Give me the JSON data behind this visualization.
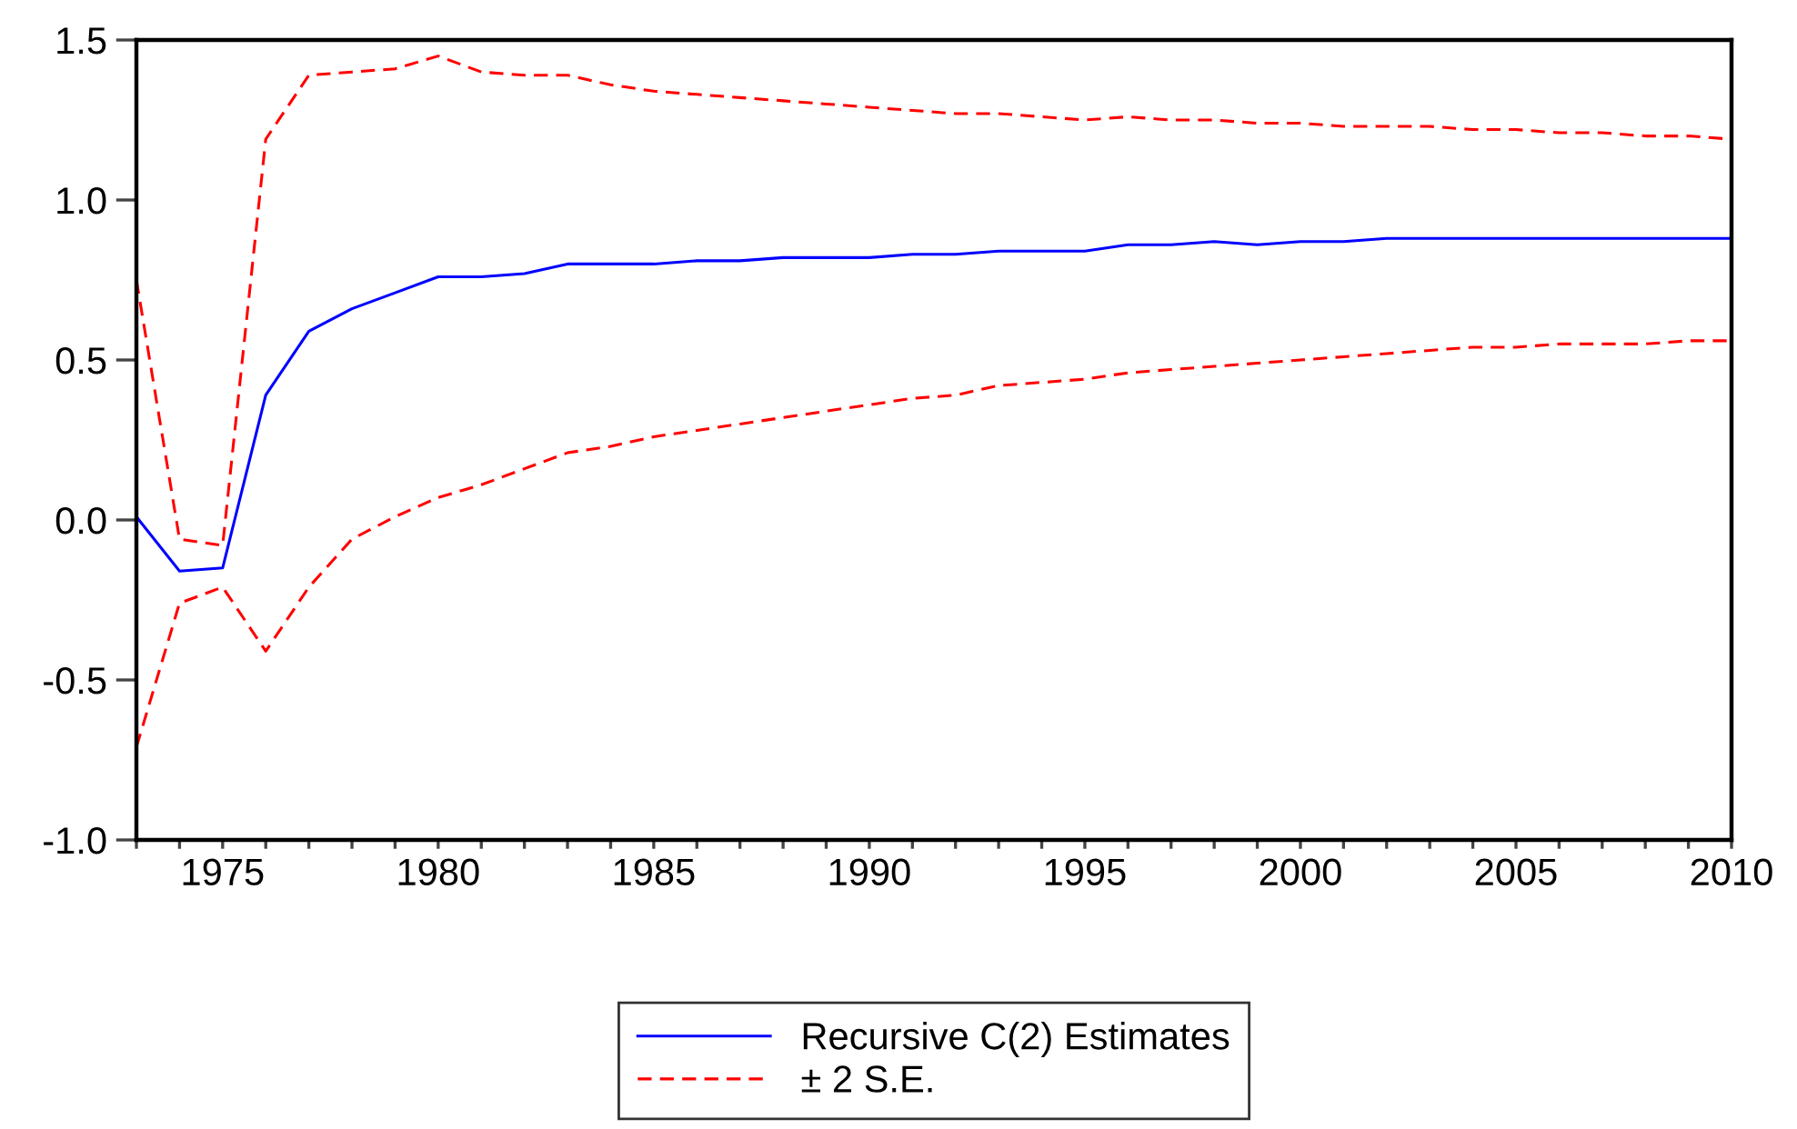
{
  "chart_data": {
    "type": "line",
    "x": [
      1973,
      1974,
      1975,
      1976,
      1977,
      1978,
      1979,
      1980,
      1981,
      1982,
      1983,
      1984,
      1985,
      1986,
      1987,
      1988,
      1989,
      1990,
      1991,
      1992,
      1993,
      1994,
      1995,
      1996,
      1997,
      1998,
      1999,
      2000,
      2001,
      2002,
      2003,
      2004,
      2005,
      2006,
      2007,
      2008,
      2009,
      2010
    ],
    "series": [
      {
        "name": "Recursive C(2) Estimates",
        "color": "#0000ff",
        "line_style": "solid",
        "values": [
          0.01,
          -0.16,
          -0.15,
          0.39,
          0.59,
          0.66,
          0.71,
          0.76,
          0.76,
          0.77,
          0.8,
          0.8,
          0.8,
          0.81,
          0.81,
          0.82,
          0.82,
          0.82,
          0.83,
          0.83,
          0.84,
          0.84,
          0.84,
          0.86,
          0.86,
          0.87,
          0.86,
          0.87,
          0.87,
          0.88,
          0.88,
          0.88,
          0.88,
          0.88,
          0.88,
          0.88,
          0.88,
          0.88
        ]
      },
      {
        "name": "± 2 S.E.",
        "color": "#ff0000",
        "line_style": "dashed",
        "values": [
          0.75,
          -0.06,
          -0.08,
          1.19,
          1.39,
          1.4,
          1.41,
          1.45,
          1.4,
          1.39,
          1.39,
          1.36,
          1.34,
          1.33,
          1.32,
          1.31,
          1.3,
          1.29,
          1.28,
          1.27,
          1.27,
          1.26,
          1.25,
          1.26,
          1.25,
          1.25,
          1.24,
          1.24,
          1.23,
          1.23,
          1.23,
          1.22,
          1.22,
          1.21,
          1.21,
          1.2,
          1.2,
          1.19
        ]
      },
      {
        "color": "#ff0000",
        "line_style": "dashed",
        "values": [
          -0.71,
          -0.26,
          -0.21,
          -0.41,
          -0.21,
          -0.06,
          0.01,
          0.07,
          0.11,
          0.16,
          0.21,
          0.23,
          0.26,
          0.28,
          0.3,
          0.32,
          0.34,
          0.36,
          0.38,
          0.39,
          0.42,
          0.43,
          0.44,
          0.46,
          0.47,
          0.48,
          0.49,
          0.5,
          0.51,
          0.52,
          0.53,
          0.54,
          0.54,
          0.55,
          0.55,
          0.55,
          0.56,
          0.56
        ]
      }
    ],
    "xlim": [
      1973,
      2010
    ],
    "xticks": [
      {
        "value": 1973,
        "label": null
      },
      {
        "value": 1974,
        "label": null
      },
      1975,
      {
        "value": 1976,
        "label": null
      },
      {
        "value": 1977,
        "label": null
      },
      {
        "value": 1978,
        "label": null
      },
      {
        "value": 1979,
        "label": null
      },
      1980,
      {
        "value": 1981,
        "label": null
      },
      {
        "value": 1982,
        "label": null
      },
      {
        "value": 1983,
        "label": null
      },
      {
        "value": 1984,
        "label": null
      },
      1985,
      {
        "value": 1986,
        "label": null
      },
      {
        "value": 1987,
        "label": null
      },
      {
        "value": 1988,
        "label": null
      },
      {
        "value": 1989,
        "label": null
      },
      1990,
      {
        "value": 1991,
        "label": null
      },
      {
        "value": 1992,
        "label": null
      },
      {
        "value": 1993,
        "label": null
      },
      {
        "value": 1994,
        "label": null
      },
      1995,
      {
        "value": 1996,
        "label": null
      },
      {
        "value": 1997,
        "label": null
      },
      {
        "value": 1998,
        "label": null
      },
      {
        "value": 1999,
        "label": null
      },
      2000,
      {
        "value": 2001,
        "label": null
      },
      {
        "value": 2002,
        "label": null
      },
      {
        "value": 2003,
        "label": null
      },
      {
        "value": 2004,
        "label": null
      },
      2005,
      {
        "value": 2006,
        "label": null
      },
      {
        "value": 2007,
        "label": null
      },
      {
        "value": 2008,
        "label": null
      },
      {
        "value": 2009,
        "label": null
      },
      2010
    ],
    "ylim": [
      -1.0,
      1.5
    ],
    "yticks": [
      {
        "value": -1.0,
        "label": "-1.0"
      },
      {
        "value": -0.5,
        "label": "-0.5"
      },
      {
        "value": 0.0,
        "label": "0.0"
      },
      {
        "value": 0.5,
        "label": "0.5"
      },
      {
        "value": 1.0,
        "label": "1.0"
      },
      {
        "value": 1.5,
        "label": "1.5"
      }
    ],
    "grid": false,
    "legend": "bottom"
  }
}
